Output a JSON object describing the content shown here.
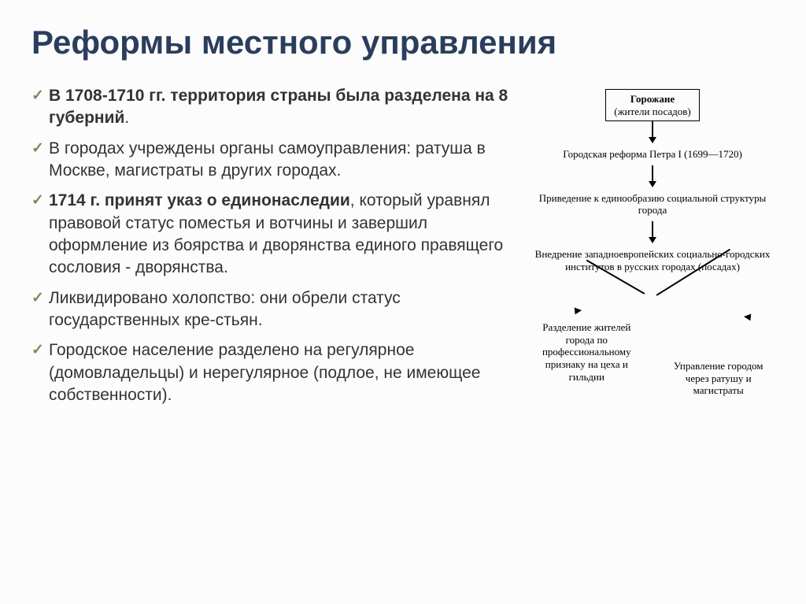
{
  "title": "Реформы местного управления",
  "bullets": [
    {
      "bold": "В 1708-1710 гг. территория страны была разделена на 8 губерний",
      "rest": "."
    },
    {
      "bold": "",
      "rest": "В городах учреждены органы самоуправления: ратуша в Москве, магистраты в других городах."
    },
    {
      "bold": " 1714 г. принят указ о единонаследии",
      "rest": ", который уравнял правовой статус поместья и вотчины и завершил оформление из боярства и дворянства единого правящего сословия - дворянства."
    },
    {
      "bold": "",
      "rest": "Ликвидировано холопство: они обрели статус государственных кре-стьян."
    },
    {
      "bold": "",
      "rest": "Городское население разделено на регулярное (домовладельцы) и нерегулярное (подлое, не имеющее собственности)."
    }
  ],
  "diagram": {
    "box_line1": "Горожане",
    "box_line2": "(жители посадов)",
    "node1": "Городская реформа Петра I (1699—1720)",
    "node2": "Приведение к единообразию социальной структуры города",
    "node3": "Внедрение западноевропейских социально-городских институтов в русских городах (посадах)",
    "leaf_left": "Разделение жителей города по профессиональному признаку на цеха и гильдии",
    "leaf_right": "Управление городом через ратушу и магистраты"
  },
  "colors": {
    "title": "#2a3e5c",
    "check": "#7a8a5a",
    "text": "#333333",
    "bg": "#fcfcfc"
  }
}
